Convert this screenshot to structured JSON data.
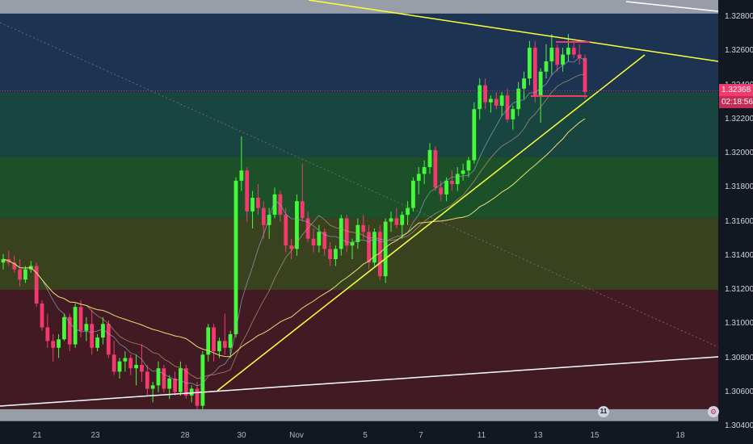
{
  "price_axis": {
    "ticks": [
      "1.32800",
      "1.32600",
      "1.32400",
      "1.32200",
      "1.32000",
      "1.31800",
      "1.31600",
      "1.31400",
      "1.31200",
      "1.31000",
      "1.30800",
      "1.30600",
      "1.30400"
    ]
  },
  "time_axis": {
    "labels": [
      "21",
      "23",
      "28",
      "30",
      "Nov",
      "5",
      "7",
      "11",
      "13",
      "15",
      "18"
    ]
  },
  "current_price": "1.32368",
  "countdown": "02:18:56",
  "events": {
    "calendar_badge": "11",
    "settings_badge": "⚙"
  },
  "colors": {
    "background": "#131722",
    "bull": "#43f93a",
    "bear": "#f23a6f",
    "trendline": "#ffff3b",
    "support_zone": "#b2b5be"
  },
  "chart_data": {
    "type": "candlestick",
    "ylim": [
      1.304,
      1.329
    ],
    "x_ticks": [
      "21",
      "23",
      "28",
      "30",
      "Nov",
      "5",
      "7",
      "11",
      "13",
      "15",
      "18"
    ],
    "zones": [
      {
        "from": 1.3282,
        "to": 1.329,
        "color": "#b2b5be"
      },
      {
        "from": 1.3236,
        "to": 1.3282,
        "color": "#1e3a5a"
      },
      {
        "from": 1.3198,
        "to": 1.3236,
        "color": "#1b4d45"
      },
      {
        "from": 1.3162,
        "to": 1.3198,
        "color": "#1d5a2a"
      },
      {
        "from": 1.312,
        "to": 1.3162,
        "color": "#3f4a1f"
      },
      {
        "from": 1.305,
        "to": 1.312,
        "color": "#4a1b24"
      },
      {
        "from": 1.3043,
        "to": 1.305,
        "color": "#b2b5be"
      }
    ],
    "candles": [
      [
        1.3136,
        1.3141,
        1.3132,
        1.3138
      ],
      [
        1.3138,
        1.3143,
        1.3134,
        1.3136
      ],
      [
        1.3136,
        1.314,
        1.313,
        1.3132
      ],
      [
        1.3132,
        1.3138,
        1.3122,
        1.3126
      ],
      [
        1.3126,
        1.3134,
        1.3124,
        1.3132
      ],
      [
        1.3132,
        1.3137,
        1.313,
        1.3134
      ],
      [
        1.3134,
        1.3136,
        1.311,
        1.3112
      ],
      [
        1.3112,
        1.3114,
        1.3096,
        1.3098
      ],
      [
        1.3098,
        1.3106,
        1.3086,
        1.309
      ],
      [
        1.309,
        1.3094,
        1.3078,
        1.3086
      ],
      [
        1.3086,
        1.3094,
        1.308,
        1.3091
      ],
      [
        1.3091,
        1.3106,
        1.309,
        1.3104
      ],
      [
        1.3104,
        1.3106,
        1.3084,
        1.3088
      ],
      [
        1.3088,
        1.3112,
        1.3086,
        1.311
      ],
      [
        1.311,
        1.3114,
        1.3092,
        1.3096
      ],
      [
        1.3096,
        1.3104,
        1.309,
        1.31
      ],
      [
        1.31,
        1.3108,
        1.3082,
        1.3086
      ],
      [
        1.3086,
        1.3094,
        1.3084,
        1.3092
      ],
      [
        1.3092,
        1.3104,
        1.3088,
        1.31
      ],
      [
        1.31,
        1.3102,
        1.308,
        1.3082
      ],
      [
        1.3082,
        1.309,
        1.307,
        1.3072
      ],
      [
        1.3072,
        1.308,
        1.3068,
        1.3078
      ],
      [
        1.3078,
        1.3084,
        1.3072,
        1.308
      ],
      [
        1.308,
        1.3082,
        1.307,
        1.3074
      ],
      [
        1.3074,
        1.3082,
        1.3064,
        1.3076
      ],
      [
        1.3076,
        1.3088,
        1.3066,
        1.3072
      ],
      [
        1.3072,
        1.3076,
        1.3058,
        1.3062
      ],
      [
        1.3062,
        1.3066,
        1.3054,
        1.3064
      ],
      [
        1.3064,
        1.3078,
        1.306,
        1.3074
      ],
      [
        1.3074,
        1.3076,
        1.306,
        1.3062
      ],
      [
        1.3062,
        1.307,
        1.3056,
        1.3068
      ],
      [
        1.3068,
        1.3072,
        1.3058,
        1.306
      ],
      [
        1.306,
        1.3078,
        1.3058,
        1.3074
      ],
      [
        1.3074,
        1.3076,
        1.3056,
        1.3058
      ],
      [
        1.3058,
        1.3064,
        1.3054,
        1.3062
      ],
      [
        1.3062,
        1.3066,
        1.305,
        1.3052
      ],
      [
        1.3052,
        1.3084,
        1.305,
        1.3082
      ],
      [
        1.3082,
        1.31,
        1.3078,
        1.3098
      ],
      [
        1.3098,
        1.31,
        1.3078,
        1.3084
      ],
      [
        1.3084,
        1.3092,
        1.308,
        1.309
      ],
      [
        1.309,
        1.3106,
        1.3082,
        1.3086
      ],
      [
        1.3086,
        1.3096,
        1.308,
        1.3094
      ],
      [
        1.3094,
        1.3186,
        1.3092,
        1.3184
      ],
      [
        1.3184,
        1.321,
        1.3178,
        1.319
      ],
      [
        1.319,
        1.3192,
        1.316,
        1.3166
      ],
      [
        1.3166,
        1.3178,
        1.3156,
        1.3174
      ],
      [
        1.3174,
        1.3182,
        1.3164,
        1.3168
      ],
      [
        1.3168,
        1.3172,
        1.315,
        1.3158
      ],
      [
        1.3158,
        1.3168,
        1.315,
        1.3164
      ],
      [
        1.3164,
        1.318,
        1.3162,
        1.3176
      ],
      [
        1.3176,
        1.3178,
        1.316,
        1.3164
      ],
      [
        1.3164,
        1.3168,
        1.3142,
        1.3146
      ],
      [
        1.3146,
        1.315,
        1.3138,
        1.3144
      ],
      [
        1.3144,
        1.3176,
        1.314,
        1.3172
      ],
      [
        1.3172,
        1.3194,
        1.316,
        1.3162
      ],
      [
        1.3162,
        1.3166,
        1.3148,
        1.315
      ],
      [
        1.315,
        1.3156,
        1.3142,
        1.3146
      ],
      [
        1.3146,
        1.3158,
        1.3142,
        1.3154
      ],
      [
        1.3154,
        1.3156,
        1.314,
        1.3144
      ],
      [
        1.3144,
        1.3148,
        1.3134,
        1.3138
      ],
      [
        1.3138,
        1.3146,
        1.3134,
        1.3144
      ],
      [
        1.3144,
        1.3164,
        1.314,
        1.3162
      ],
      [
        1.3162,
        1.3164,
        1.3142,
        1.3146
      ],
      [
        1.3146,
        1.315,
        1.3138,
        1.3148
      ],
      [
        1.3148,
        1.3162,
        1.3144,
        1.3158
      ],
      [
        1.3158,
        1.3164,
        1.315,
        1.3154
      ],
      [
        1.3154,
        1.3158,
        1.3132,
        1.3136
      ],
      [
        1.3136,
        1.3156,
        1.3134,
        1.3154
      ],
      [
        1.3154,
        1.3158,
        1.3126,
        1.3128
      ],
      [
        1.3128,
        1.3162,
        1.3124,
        1.316
      ],
      [
        1.316,
        1.3166,
        1.3154,
        1.3162
      ],
      [
        1.3162,
        1.3168,
        1.3156,
        1.3158
      ],
      [
        1.3158,
        1.3166,
        1.315,
        1.3164
      ],
      [
        1.3164,
        1.3172,
        1.3158,
        1.3168
      ],
      [
        1.3168,
        1.3186,
        1.3166,
        1.3184
      ],
      [
        1.3184,
        1.3192,
        1.3176,
        1.3188
      ],
      [
        1.3188,
        1.3196,
        1.3182,
        1.3192
      ],
      [
        1.3192,
        1.3206,
        1.3188,
        1.3202
      ],
      [
        1.3202,
        1.3204,
        1.3178,
        1.318
      ],
      [
        1.318,
        1.3184,
        1.3172,
        1.3176
      ],
      [
        1.3176,
        1.3186,
        1.3172,
        1.3184
      ],
      [
        1.3184,
        1.319,
        1.3178,
        1.3182
      ],
      [
        1.3182,
        1.3192,
        1.3178,
        1.3188
      ],
      [
        1.3188,
        1.3194,
        1.3184,
        1.319
      ],
      [
        1.319,
        1.3198,
        1.3186,
        1.3196
      ],
      [
        1.3196,
        1.323,
        1.3194,
        1.3226
      ],
      [
        1.3226,
        1.3244,
        1.322,
        1.324
      ],
      [
        1.324,
        1.3244,
        1.3226,
        1.323
      ],
      [
        1.323,
        1.3234,
        1.3224,
        1.3232
      ],
      [
        1.3232,
        1.3236,
        1.3226,
        1.3228
      ],
      [
        1.3228,
        1.3236,
        1.3222,
        1.3234
      ],
      [
        1.3234,
        1.3238,
        1.3218,
        1.322
      ],
      [
        1.322,
        1.3228,
        1.3214,
        1.3226
      ],
      [
        1.3226,
        1.3242,
        1.3222,
        1.3238
      ],
      [
        1.3238,
        1.3248,
        1.3232,
        1.3244
      ],
      [
        1.3244,
        1.3266,
        1.324,
        1.3262
      ],
      [
        1.3262,
        1.3266,
        1.323,
        1.3234
      ],
      [
        1.3234,
        1.325,
        1.3218,
        1.3248
      ],
      [
        1.3248,
        1.3264,
        1.3244,
        1.3254
      ],
      [
        1.3254,
        1.327,
        1.3246,
        1.3262
      ],
      [
        1.3262,
        1.3264,
        1.3248,
        1.3252
      ],
      [
        1.3252,
        1.3262,
        1.3248,
        1.3258
      ],
      [
        1.3258,
        1.327,
        1.3254,
        1.3262
      ],
      [
        1.3262,
        1.3266,
        1.3256,
        1.3258
      ],
      [
        1.3258,
        1.3264,
        1.3252,
        1.3256
      ],
      [
        1.3256,
        1.3258,
        1.3232,
        1.3236
      ]
    ]
  }
}
